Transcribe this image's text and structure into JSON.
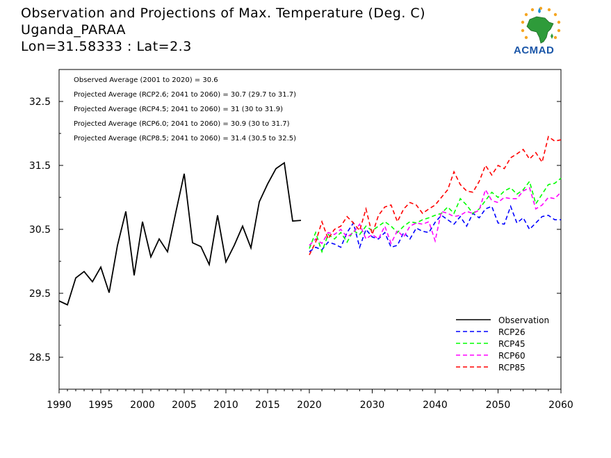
{
  "header": {
    "title_line1": "Observation and Projections of Max. Temperature (Deg. C)",
    "title_line2": "Uganda_PARAA",
    "title_line3": "Lon=31.58333 : Lat=2.3"
  },
  "logo": {
    "text": "ACMAD",
    "icon": "africa-map-sun-logo-icon"
  },
  "chart_data": {
    "type": "line",
    "ylim": [
      28.0,
      33.0
    ],
    "yticks": [
      28.5,
      29.5,
      30.5,
      31.5,
      32.5
    ],
    "yticklabels": [
      "28.5",
      "29.5",
      "30.5",
      "31.5",
      "32.5"
    ],
    "xaxis_left": {
      "range": [
        1990,
        2020
      ],
      "ticks": [
        1990,
        1995,
        2000,
        2005,
        2010,
        2015,
        2020
      ],
      "ticklabels": [
        "1990",
        "1995",
        "2000",
        "2005",
        "2010",
        "2015",
        "2020"
      ]
    },
    "xaxis_right": {
      "range": [
        2020,
        2060
      ],
      "ticks": [
        2030,
        2040,
        2050,
        2060
      ],
      "ticklabels": [
        "2030",
        "2040",
        "2050",
        "2060"
      ]
    },
    "annotations": [
      "Observed Average (2001 to 2020) = 30.6",
      "Projected Average (RCP2.6; 2041 to 2060) = 30.7 (29.7 to 31.7)",
      "Projected Average (RCP4.5; 2041 to 2060) = 31 (30 to 31.9)",
      "Projected Average (RCP6.0; 2041 to 2060) = 30.9 (30 to 31.7)",
      "Projected Average (RCP8.5; 2041 to 2060) = 31.4 (30.5 to 32.5)"
    ],
    "legend_position": "bottom-right",
    "series": [
      {
        "name": "Observation",
        "color": "#000000",
        "dashed": false,
        "x": [
          1990,
          1991,
          1992,
          1993,
          1994,
          1995,
          1996,
          1997,
          1998,
          1999,
          2000,
          2001,
          2002,
          2003,
          2004,
          2005,
          2006,
          2007,
          2008,
          2009,
          2010,
          2011,
          2012,
          2013,
          2014,
          2015,
          2016,
          2017,
          2018,
          2019
        ],
        "values": [
          29.38,
          29.32,
          29.74,
          29.84,
          29.68,
          29.91,
          29.51,
          30.25,
          30.78,
          29.78,
          30.62,
          30.07,
          30.35,
          30.15,
          30.77,
          31.37,
          30.29,
          30.23,
          29.95,
          30.72,
          29.99,
          30.25,
          30.55,
          30.21,
          30.93,
          31.21,
          31.45,
          31.54,
          30.63,
          30.64
        ]
      },
      {
        "name": "RCP26",
        "color": "#0000ff",
        "dashed": true,
        "x": [
          2020,
          2021,
          2022,
          2023,
          2024,
          2025,
          2026,
          2027,
          2028,
          2029,
          2030,
          2031,
          2032,
          2033,
          2034,
          2035,
          2036,
          2037,
          2038,
          2039,
          2040,
          2041,
          2042,
          2043,
          2044,
          2045,
          2046,
          2047,
          2048,
          2049,
          2050,
          2051,
          2052,
          2053,
          2054,
          2055,
          2056,
          2057,
          2058,
          2059,
          2060
        ],
        "values": [
          30.15,
          30.22,
          30.18,
          30.3,
          30.27,
          30.22,
          30.45,
          30.6,
          30.22,
          30.5,
          30.38,
          30.35,
          30.45,
          30.22,
          30.25,
          30.45,
          30.35,
          30.52,
          30.47,
          30.45,
          30.61,
          30.72,
          30.65,
          30.58,
          30.7,
          30.55,
          30.75,
          30.68,
          30.82,
          30.86,
          30.6,
          30.58,
          30.86,
          30.6,
          30.68,
          30.5,
          30.6,
          30.7,
          30.72,
          30.65,
          30.65
        ]
      },
      {
        "name": "RCP45",
        "color": "#00ff00",
        "dashed": true,
        "x": [
          2020,
          2021,
          2022,
          2023,
          2024,
          2025,
          2026,
          2027,
          2028,
          2029,
          2030,
          2031,
          2032,
          2033,
          2034,
          2035,
          2036,
          2037,
          2038,
          2039,
          2040,
          2041,
          2042,
          2043,
          2044,
          2045,
          2046,
          2047,
          2048,
          2049,
          2050,
          2051,
          2052,
          2053,
          2054,
          2055,
          2056,
          2057,
          2058,
          2059,
          2060
        ],
        "values": [
          30.2,
          30.45,
          30.15,
          30.42,
          30.35,
          30.45,
          30.3,
          30.48,
          30.42,
          30.55,
          30.48,
          30.55,
          30.62,
          30.55,
          30.45,
          30.55,
          30.62,
          30.6,
          30.65,
          30.68,
          30.72,
          30.75,
          30.85,
          30.75,
          30.98,
          30.88,
          30.75,
          30.82,
          30.95,
          31.08,
          31.0,
          31.1,
          31.15,
          31.05,
          31.12,
          31.25,
          30.9,
          31.05,
          31.2,
          31.22,
          31.3
        ]
      },
      {
        "name": "RCP60",
        "color": "#ff00ff",
        "dashed": true,
        "x": [
          2020,
          2021,
          2022,
          2023,
          2024,
          2025,
          2026,
          2027,
          2028,
          2029,
          2030,
          2031,
          2032,
          2033,
          2034,
          2035,
          2036,
          2037,
          2038,
          2039,
          2040,
          2041,
          2042,
          2043,
          2044,
          2045,
          2046,
          2047,
          2048,
          2049,
          2050,
          2051,
          2052,
          2053,
          2054,
          2055,
          2056,
          2057,
          2058,
          2059,
          2060
        ],
        "values": [
          30.25,
          30.35,
          30.28,
          30.45,
          30.42,
          30.5,
          30.38,
          30.45,
          30.58,
          30.35,
          30.42,
          30.35,
          30.55,
          30.28,
          30.48,
          30.38,
          30.55,
          30.6,
          30.58,
          30.62,
          30.32,
          30.78,
          30.75,
          30.7,
          30.72,
          30.78,
          30.75,
          30.8,
          31.12,
          30.95,
          30.92,
          31.0,
          30.98,
          30.98,
          31.1,
          31.15,
          30.82,
          30.88,
          31.0,
          30.98,
          31.08
        ]
      },
      {
        "name": "RCP85",
        "color": "#ff0000",
        "dashed": true,
        "x": [
          2020,
          2021,
          2022,
          2023,
          2024,
          2025,
          2026,
          2027,
          2028,
          2029,
          2030,
          2031,
          2032,
          2033,
          2034,
          2035,
          2036,
          2037,
          2038,
          2039,
          2040,
          2041,
          2042,
          2043,
          2044,
          2045,
          2046,
          2047,
          2048,
          2049,
          2050,
          2051,
          2052,
          2053,
          2054,
          2055,
          2056,
          2057,
          2058,
          2059,
          2060
        ],
        "values": [
          30.1,
          30.3,
          30.62,
          30.35,
          30.5,
          30.55,
          30.7,
          30.6,
          30.48,
          30.82,
          30.42,
          30.72,
          30.85,
          30.88,
          30.62,
          30.82,
          30.92,
          30.88,
          30.75,
          30.82,
          30.88,
          31.0,
          31.12,
          31.4,
          31.2,
          31.1,
          31.08,
          31.25,
          31.5,
          31.35,
          31.5,
          31.45,
          31.62,
          31.68,
          31.75,
          31.6,
          31.7,
          31.55,
          31.95,
          31.88,
          31.9
        ]
      }
    ]
  }
}
